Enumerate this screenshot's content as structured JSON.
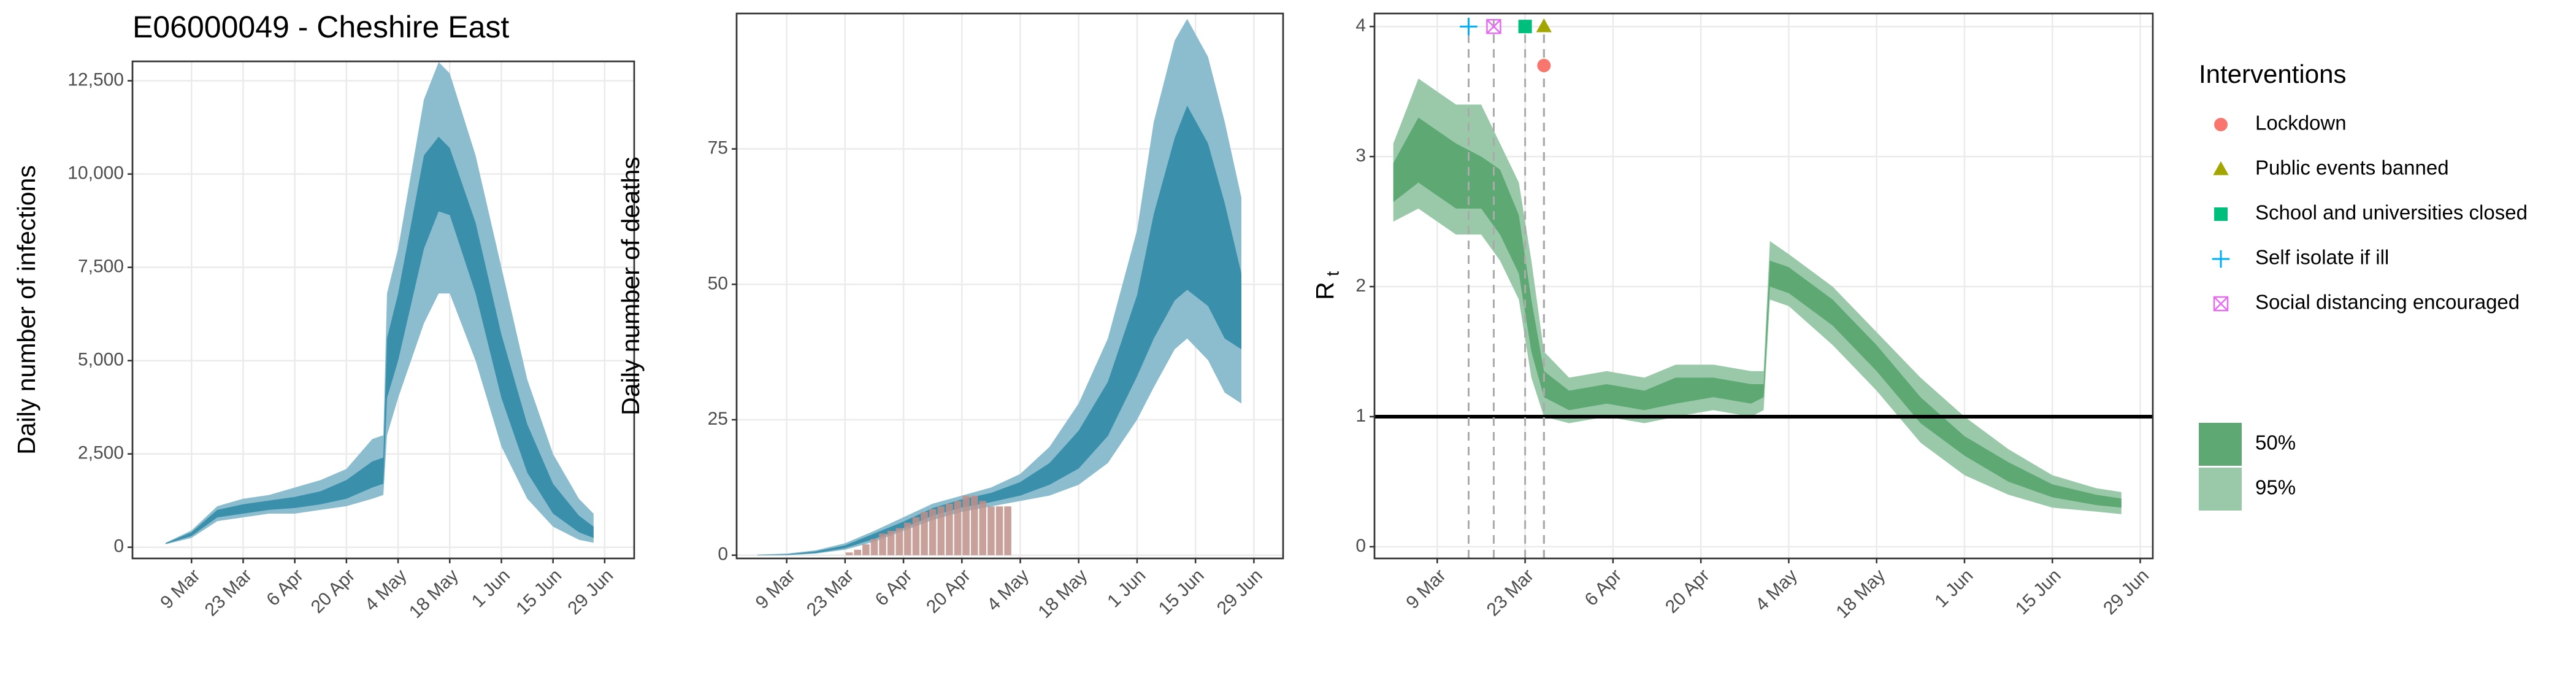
{
  "chart_data": [
    {
      "type": "area",
      "title": "E06000049 - Cheshire East",
      "ylabel": "Daily number of infections",
      "grid": true,
      "xlim": [
        "22 Feb",
        "7 Jul"
      ],
      "ylim": [
        -300,
        13020
      ],
      "xticks": [
        "9 Mar",
        "23 Mar",
        "6 Apr",
        "20 Apr",
        "4 May",
        "18 May",
        "1 Jun",
        "15 Jun",
        "29 Jun"
      ],
      "yticks": [
        0,
        {
          "value": 2500,
          "label": "2,500"
        },
        {
          "value": 5000,
          "label": "5,000"
        },
        {
          "value": 7500,
          "label": "7,500"
        },
        {
          "value": 10000,
          "label": "10,000"
        },
        {
          "value": 12500,
          "label": "12,500"
        }
      ],
      "x": [
        "2 Mar",
        "9 Mar",
        "16 Mar",
        "23 Mar",
        "30 Mar",
        "6 Apr",
        "13 Apr",
        "20 Apr",
        "27 Apr",
        "30 Apr",
        "1 May",
        "4 May",
        "11 May",
        "15 May",
        "18 May",
        "25 May",
        "1 Jun",
        "8 Jun",
        "15 Jun",
        "22 Jun",
        "26 Jun"
      ],
      "bands": [
        {
          "color": "#3a8fab",
          "lower": [
            90,
            300,
            800,
            900,
            1000,
            1050,
            1150,
            1300,
            1600,
            1700,
            4000,
            5000,
            8000,
            9000,
            8900,
            6800,
            4000,
            2000,
            900,
            400,
            250
          ],
          "upper": [
            110,
            400,
            1000,
            1150,
            1250,
            1350,
            1500,
            1800,
            2300,
            2400,
            5600,
            6800,
            10500,
            11000,
            10700,
            8700,
            5700,
            3300,
            1700,
            850,
            550
          ]
        },
        {
          "color": "#8bbdcf",
          "lower": [
            80,
            250,
            700,
            800,
            900,
            900,
            1000,
            1100,
            1300,
            1400,
            3000,
            4000,
            6000,
            6800,
            6800,
            5000,
            2700,
            1300,
            550,
            200,
            120
          ],
          "upper": [
            120,
            450,
            1100,
            1300,
            1400,
            1600,
            1800,
            2100,
            2900,
            3000,
            6800,
            8000,
            12000,
            13000,
            12700,
            10500,
            7500,
            4500,
            2500,
            1300,
            900
          ]
        }
      ]
    },
    {
      "type": "area",
      "ylabel": "Daily number of deaths",
      "grid": true,
      "xlim": [
        "26 Feb",
        "6 Jul"
      ],
      "ylim": [
        -0.6,
        100
      ],
      "xticks": [
        "9 Mar",
        "23 Mar",
        "6 Apr",
        "20 Apr",
        "4 May",
        "18 May",
        "1 Jun",
        "15 Jun",
        "29 Jun"
      ],
      "yticks": [
        0,
        25,
        50,
        75
      ],
      "x": [
        "2 Mar",
        "9 Mar",
        "16 Mar",
        "23 Mar",
        "30 Mar",
        "6 Apr",
        "13 Apr",
        "20 Apr",
        "27 Apr",
        "4 May",
        "11 May",
        "18 May",
        "25 May",
        "1 Jun",
        "5 Jun",
        "10 Jun",
        "13 Jun",
        "18 Jun",
        "22 Jun",
        "26 Jun"
      ],
      "bands": [
        {
          "color": "#3a8fab",
          "lower": [
            0,
            0.05,
            0.4,
            1.3,
            3,
            5,
            7.3,
            8.8,
            9.8,
            11,
            13,
            16,
            22,
            33,
            40,
            47,
            49,
            46,
            40,
            38
          ],
          "upper": [
            0.05,
            0.15,
            0.7,
            1.8,
            4,
            6.2,
            8.7,
            10.3,
            11.5,
            13.5,
            17,
            23,
            32,
            48,
            63,
            77,
            83,
            76,
            65,
            52
          ]
        },
        {
          "color": "#8bbdcf",
          "lower": [
            0,
            0,
            0.3,
            1,
            2.5,
            4.5,
            6.5,
            8,
            9,
            10,
            11,
            13,
            17,
            25,
            31,
            38,
            40,
            36,
            30,
            28
          ],
          "upper": [
            0.1,
            0.3,
            0.9,
            2.2,
            4.5,
            7,
            9.5,
            11,
            12.5,
            15,
            20,
            28,
            40,
            60,
            80,
            95,
            99,
            92,
            80,
            66
          ]
        }
      ],
      "bars": {
        "color": "#c0918a",
        "x": [
          "24 Mar",
          "26 Mar",
          "28 Mar",
          "30 Mar",
          "1 Apr",
          "3 Apr",
          "5 Apr",
          "7 Apr",
          "9 Apr",
          "11 Apr",
          "13 Apr",
          "15 Apr",
          "17 Apr",
          "19 Apr",
          "21 Apr",
          "23 Apr",
          "25 Apr",
          "27 Apr",
          "29 Apr",
          "1 May"
        ],
        "values": [
          0.5,
          1,
          2,
          3,
          4,
          4.5,
          5,
          6,
          7,
          8,
          8.5,
          9,
          9.5,
          10,
          11,
          11,
          10,
          9,
          9,
          9
        ]
      }
    },
    {
      "type": "area",
      "ylabel": "R",
      "ylabel_sub": "t",
      "grid": true,
      "xlim": [
        "28 Feb",
        "1 Jul"
      ],
      "ylim": [
        -0.09,
        4.1
      ],
      "xticks": [
        "9 Mar",
        "23 Mar",
        "6 Apr",
        "20 Apr",
        "4 May",
        "18 May",
        "1 Jun",
        "15 Jun",
        "29 Jun"
      ],
      "yticks": [
        0,
        1,
        2,
        3,
        4
      ],
      "hline": 1,
      "x": [
        "2 Mar",
        "6 Mar",
        "9 Mar",
        "12 Mar",
        "16 Mar",
        "19 Mar",
        "22 Mar",
        "24 Mar",
        "26 Mar",
        "30 Mar",
        "5 Apr",
        "11 Apr",
        "16 Apr",
        "22 Apr",
        "28 Apr",
        "30 Apr",
        "1 May",
        "4 May",
        "11 May",
        "18 May",
        "25 May",
        "1 Jun",
        "8 Jun",
        "15 Jun",
        "22 Jun",
        "26 Jun"
      ],
      "bands": [
        {
          "name": "50%",
          "color": "#5ea874",
          "lower": [
            2.65,
            2.8,
            2.7,
            2.6,
            2.6,
            2.4,
            2.1,
            1.5,
            1.15,
            1.05,
            1.1,
            1.05,
            1.1,
            1.15,
            1.1,
            1.15,
            2.0,
            1.95,
            1.7,
            1.35,
            0.95,
            0.7,
            0.5,
            0.38,
            0.32,
            0.3
          ],
          "upper": [
            2.95,
            3.3,
            3.2,
            3.1,
            3.0,
            2.9,
            2.55,
            1.9,
            1.35,
            1.2,
            1.25,
            1.2,
            1.3,
            1.3,
            1.25,
            1.25,
            2.2,
            2.15,
            1.9,
            1.55,
            1.15,
            0.85,
            0.65,
            0.48,
            0.4,
            0.37
          ]
        },
        {
          "name": "95%",
          "color": "#9ac9a9",
          "lower": [
            2.5,
            2.6,
            2.5,
            2.4,
            2.4,
            2.2,
            1.9,
            1.3,
            1.0,
            0.95,
            1.0,
            0.95,
            1.0,
            1.05,
            1.0,
            1.05,
            1.9,
            1.85,
            1.55,
            1.2,
            0.8,
            0.55,
            0.4,
            0.3,
            0.27,
            0.25
          ],
          "upper": [
            3.1,
            3.6,
            3.5,
            3.4,
            3.4,
            3.1,
            2.8,
            2.2,
            1.5,
            1.3,
            1.35,
            1.3,
            1.4,
            1.4,
            1.35,
            1.35,
            2.35,
            2.25,
            2.0,
            1.65,
            1.3,
            1.0,
            0.75,
            0.55,
            0.45,
            0.42
          ]
        }
      ],
      "interventions": {
        "title": "Interventions",
        "items": [
          {
            "name": "Lockdown",
            "date": "26 Mar",
            "y": 3.7,
            "shape": "circle",
            "color": "#f8766d"
          },
          {
            "name": "Public events banned",
            "date": "26 Mar",
            "y": 4,
            "shape": "triangle",
            "color": "#a3a500"
          },
          {
            "name": "School and universities closed",
            "date": "23 Mar",
            "y": 4,
            "shape": "square",
            "color": "#00bf7d"
          },
          {
            "name": "Self isolate if ill",
            "date": "14 Mar",
            "y": 4,
            "shape": "plus",
            "color": "#00b0f6"
          },
          {
            "name": "Social distancing encouraged",
            "date": "18 Mar",
            "y": 4,
            "shape": "boxx",
            "color": "#e76bf3"
          }
        ]
      }
    }
  ]
}
